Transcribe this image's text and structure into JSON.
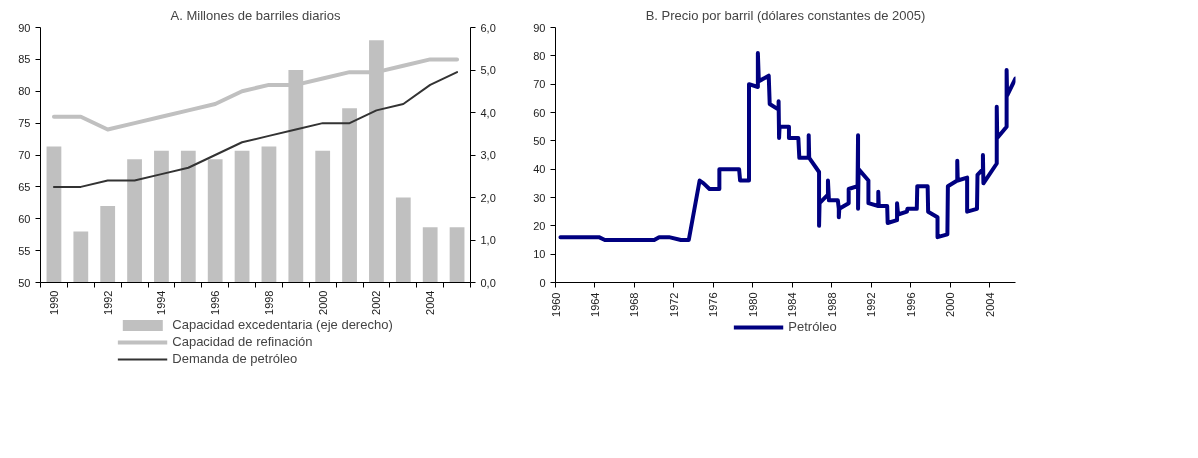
{
  "chart_data": [
    {
      "type": "bar",
      "title": "A. Millones de barriles diarios",
      "categories": [
        "1990",
        null,
        "1992",
        null,
        "1994",
        null,
        "1996",
        null,
        "1998",
        null,
        "2000",
        null,
        "2002",
        null,
        "2004",
        null
      ],
      "series": [
        {
          "name": "Capacidad excedentaria (eje derecho)",
          "type": "bar",
          "axis": "y2",
          "color": "#c0c0c0",
          "values": [
            3.2,
            1.2,
            1.8,
            2.9,
            3.1,
            3.1,
            2.9,
            3.1,
            3.2,
            5.0,
            3.1,
            4.1,
            5.7,
            2.0,
            1.3,
            1.3
          ]
        },
        {
          "name": "Capacidad de refinación",
          "type": "line",
          "color": "#c0c0c0",
          "values": [
            76,
            76,
            74,
            75,
            76,
            77,
            78,
            80,
            81,
            81,
            82,
            83,
            83,
            84,
            85,
            85
          ]
        },
        {
          "name": "Demanda de petróleo",
          "type": "line",
          "color": "#333333",
          "values": [
            65,
            65,
            66,
            66,
            67,
            68,
            70,
            72,
            73,
            74,
            75,
            75,
            77,
            78,
            81,
            83
          ]
        }
      ],
      "ylim": [
        50,
        90
      ],
      "yticks": [
        50,
        55,
        60,
        65,
        70,
        75,
        80,
        85,
        90
      ],
      "y2lim": [
        0,
        6
      ],
      "y2ticks": [
        {
          "value": 0,
          "label": "0,0"
        },
        {
          "value": 1,
          "label": "1,0"
        },
        {
          "value": 2,
          "label": "2,0"
        },
        {
          "value": 3,
          "label": "3,0"
        },
        {
          "value": 4,
          "label": "4,0"
        },
        {
          "value": 5,
          "label": "5,0"
        },
        {
          "value": 6,
          "label": "6,0"
        }
      ],
      "grid": false,
      "legend": "bottom"
    },
    {
      "type": "line",
      "title": "B. Precio por barril (dólares constantes de 2005)",
      "series": [
        {
          "name": "Petróleo",
          "color": "#000080",
          "x": [
            1960.5,
            1964.4,
            1965.0,
            1966.0,
            1968.0,
            1968.5,
            1969.5,
            1970.0,
            1970.5,
            1971.5,
            1972.7,
            1973.5,
            1974.6,
            1975.0,
            1975.6,
            1976.6,
            1976.6,
            1978.6,
            1978.7,
            1979.6,
            1979.6,
            1980.5,
            1980.5,
            1980.6,
            1981.6,
            1981.7,
            1982.6,
            1982.6,
            1982.65,
            1982.7,
            1983.65,
            1983.65,
            1984.6,
            1984.7,
            1985.65,
            1985.65,
            1985.7,
            1986.7,
            1986.7,
            1986.75,
            1987.6,
            1987.6,
            1987.7,
            1988.6,
            1988.7,
            1988.7,
            1988.75,
            1989.7,
            1989.7,
            1990.6,
            1990.65,
            1990.65,
            1990.7,
            1991.7,
            1991.7,
            1992.7,
            1992.7,
            1992.75,
            1993.6,
            1993.65,
            1994.6,
            1994.6,
            1994.7,
            1995.6,
            1995.65,
            1996.6,
            1996.65,
            1997.7,
            1997.75,
            1998.7,
            1998.7,
            1999.7,
            1999.75,
            2000.7,
            2000.7,
            2000.75,
            2001.7,
            2001.7,
            2002.7,
            2002.75,
            2003.3,
            2003.3,
            2003.35,
            2004.7,
            2004.7,
            2004.75,
            2005.7,
            2005.7,
            2005.75,
            2006.6
          ],
          "values": [
            16,
            16,
            15,
            15,
            15,
            15,
            15,
            15,
            16,
            16,
            15,
            15,
            36,
            35,
            33,
            33,
            40,
            40,
            36,
            36,
            70,
            69,
            81,
            71,
            73,
            63,
            61,
            64,
            51,
            55,
            55,
            51,
            51,
            44,
            44,
            52,
            44,
            39,
            20,
            28,
            31,
            36,
            29,
            29,
            26,
            23,
            26,
            28,
            33,
            34,
            52,
            26,
            40,
            36,
            28,
            27,
            32,
            27,
            27,
            21,
            22,
            28,
            24,
            25,
            26,
            26,
            34,
            34,
            25,
            23,
            16,
            17,
            34,
            36,
            43,
            36,
            37,
            25,
            26,
            38,
            40,
            45,
            35,
            42,
            62,
            51,
            55,
            75,
            66,
            72
          ]
        }
      ],
      "xlim": [
        1960,
        2006.6
      ],
      "xticks": [
        1960,
        1964,
        1968,
        1972,
        1976,
        1980,
        1984,
        1988,
        1992,
        1996,
        2000,
        2004
      ],
      "ylim": [
        0,
        90
      ],
      "yticks": [
        0,
        10,
        20,
        30,
        40,
        50,
        60,
        70,
        80,
        90
      ],
      "grid": false,
      "legend": "bottom"
    }
  ]
}
